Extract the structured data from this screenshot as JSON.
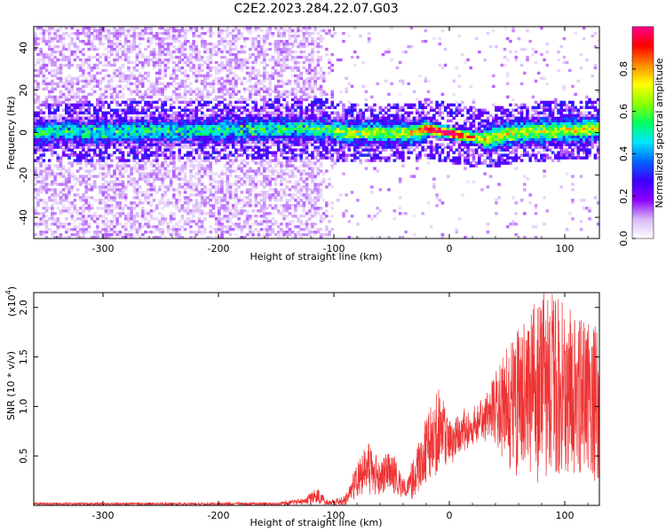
{
  "title": "C2E2.2023.284.22.07.G03",
  "chart_data": [
    {
      "type": "heatmap",
      "xlabel": "Height of straight line (km)",
      "ylabel": "Frequency (Hz)",
      "xlim": [
        -360,
        130
      ],
      "ylim": [
        -50,
        50
      ],
      "xticks": [
        -300,
        -200,
        -100,
        0,
        100
      ],
      "yticks": [
        -40,
        -20,
        0,
        20,
        40
      ],
      "colorbar": {
        "label": "Normalized spectral amplitude",
        "range": [
          0.0,
          1.0
        ],
        "ticks": [
          0.0,
          0.2,
          0.4,
          0.6,
          0.8
        ],
        "colormap": [
          "#ffffff",
          "#d8b8f8",
          "#8a00ff",
          "#3c00ff",
          "#0064ff",
          "#00e6ff",
          "#00ff60",
          "#8cff00",
          "#ffff00",
          "#ff8c00",
          "#ff0000",
          "#ff0088"
        ]
      },
      "ridge_center": [
        {
          "x": -360,
          "y": 0
        },
        {
          "x": -110,
          "y": 2
        },
        {
          "x": -90,
          "y": 0
        },
        {
          "x": -30,
          "y": 0
        },
        {
          "x": -20,
          "y": 2
        },
        {
          "x": 0,
          "y": 0
        },
        {
          "x": 30,
          "y": -3
        },
        {
          "x": 60,
          "y": 0
        },
        {
          "x": 130,
          "y": 2
        }
      ],
      "peak_x": -5
    },
    {
      "type": "line",
      "xlabel": "Height of straight line (km)",
      "ylabel": "SNR (10 * v/v)",
      "y_scale_label": "(x10",
      "y_scale_exp": "4",
      "y_scale_close": ")",
      "y_multiplier": 10000,
      "xlim": [
        -360,
        130
      ],
      "ylim": [
        0,
        2.15
      ],
      "xticks": [
        -300,
        -200,
        -100,
        0,
        100
      ],
      "yticks": [
        0.5,
        1.0,
        1.5,
        2.0
      ],
      "line_color": "#ee3333",
      "envelope": [
        {
          "x": -360,
          "lo": 0.0,
          "hi": 0.03
        },
        {
          "x": -150,
          "lo": 0.0,
          "hi": 0.03
        },
        {
          "x": -125,
          "lo": 0.0,
          "hi": 0.08
        },
        {
          "x": -115,
          "lo": 0.0,
          "hi": 0.18
        },
        {
          "x": -105,
          "lo": 0.0,
          "hi": 0.05
        },
        {
          "x": -90,
          "lo": 0.0,
          "hi": 0.1
        },
        {
          "x": -80,
          "lo": 0.05,
          "hi": 0.45
        },
        {
          "x": -70,
          "lo": 0.1,
          "hi": 0.65
        },
        {
          "x": -60,
          "lo": 0.1,
          "hi": 0.45
        },
        {
          "x": -50,
          "lo": 0.1,
          "hi": 0.6
        },
        {
          "x": -40,
          "lo": 0.05,
          "hi": 0.25
        },
        {
          "x": -30,
          "lo": 0.05,
          "hi": 0.5
        },
        {
          "x": -20,
          "lo": 0.2,
          "hi": 0.9
        },
        {
          "x": -10,
          "lo": 0.3,
          "hi": 1.25
        },
        {
          "x": 0,
          "lo": 0.4,
          "hi": 0.85
        },
        {
          "x": 10,
          "lo": 0.5,
          "hi": 0.95
        },
        {
          "x": 20,
          "lo": 0.6,
          "hi": 1.05
        },
        {
          "x": 30,
          "lo": 0.65,
          "hi": 1.1
        },
        {
          "x": 40,
          "lo": 0.55,
          "hi": 1.35
        },
        {
          "x": 50,
          "lo": 0.35,
          "hi": 1.6
        },
        {
          "x": 60,
          "lo": 0.2,
          "hi": 1.85
        },
        {
          "x": 70,
          "lo": 0.15,
          "hi": 2.0
        },
        {
          "x": 80,
          "lo": 0.1,
          "hi": 2.15
        },
        {
          "x": 90,
          "lo": 0.05,
          "hi": 2.15
        },
        {
          "x": 100,
          "lo": 0.1,
          "hi": 2.05
        },
        {
          "x": 110,
          "lo": 0.1,
          "hi": 1.95
        },
        {
          "x": 120,
          "lo": 0.15,
          "hi": 1.85
        },
        {
          "x": 130,
          "lo": 0.2,
          "hi": 1.8
        }
      ]
    }
  ]
}
